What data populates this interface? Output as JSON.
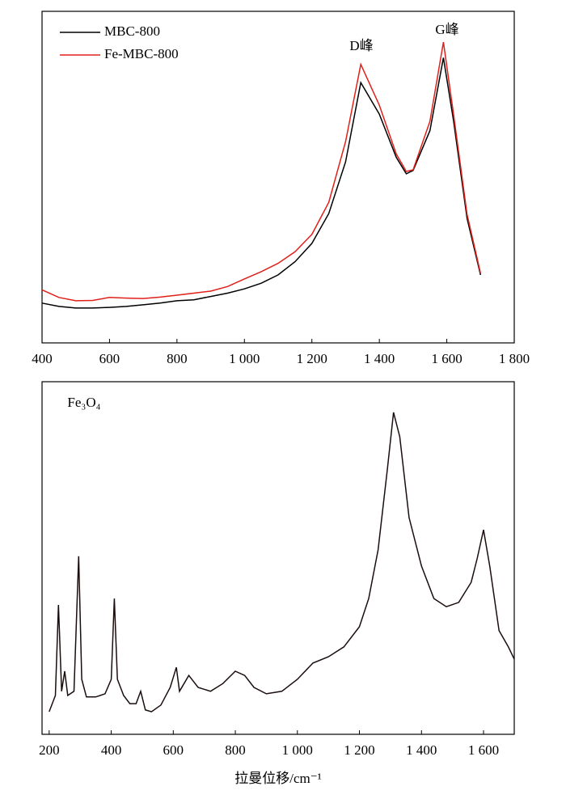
{
  "chart_data": [
    {
      "type": "line",
      "annotations": [
        "D峰",
        "G峰"
      ],
      "legend": "upper left",
      "x": [
        400,
        450,
        500,
        550,
        600,
        650,
        700,
        750,
        800,
        850,
        900,
        950,
        1000,
        1050,
        1100,
        1150,
        1200,
        1250,
        1300,
        1345,
        1400,
        1450,
        1480,
        1500,
        1550,
        1590,
        1620,
        1660,
        1700
      ],
      "series": [
        {
          "name": "MBC-800",
          "color": "#000000",
          "values": [
            12,
            11,
            10.5,
            10.5,
            10.7,
            11,
            11.5,
            12,
            12.7,
            13,
            14,
            15,
            16.3,
            18,
            20.5,
            24.5,
            30,
            39,
            54.6,
            78.5,
            69,
            56,
            51,
            52,
            64,
            86,
            67,
            37.6,
            20.5
          ]
        },
        {
          "name": "Fe-MBC-800",
          "color": "#e0201b",
          "values": [
            16,
            13.7,
            12.7,
            12.8,
            13.7,
            13.5,
            13.4,
            13.8,
            14.4,
            15,
            15.6,
            17,
            19.3,
            21.5,
            24,
            27.5,
            32.7,
            42.4,
            60.7,
            84,
            71.7,
            57,
            51.7,
            52.2,
            66.8,
            90.7,
            69,
            38.8,
            21
          ]
        }
      ],
      "xlim": [
        400,
        1800
      ],
      "xticks": [
        400,
        600,
        800,
        {
          "value": 1000,
          "label": "1 000"
        },
        {
          "value": 1200,
          "label": "1 200"
        },
        {
          "value": 1400,
          "label": "1 400"
        },
        {
          "value": 1600,
          "label": "1 600"
        },
        {
          "value": 1800,
          "label": "1 800"
        }
      ],
      "ylim": [
        0,
        100
      ]
    },
    {
      "type": "line",
      "annotations": [
        "Fe₃O₄"
      ],
      "x_label": "拉曼位移/cm⁻¹",
      "x": [
        200,
        220,
        230,
        240,
        250,
        260,
        280,
        295,
        305,
        320,
        350,
        380,
        400,
        410,
        420,
        440,
        460,
        480,
        495,
        510,
        530,
        560,
        590,
        610,
        620,
        650,
        680,
        720,
        760,
        800,
        830,
        860,
        900,
        950,
        1000,
        1050,
        1100,
        1150,
        1200,
        1230,
        1260,
        1290,
        1310,
        1330,
        1360,
        1400,
        1440,
        1480,
        1520,
        1560,
        1580,
        1600,
        1620,
        1650,
        1680,
        1699
      ],
      "series": [
        {
          "color": "#1a0d0d",
          "values": [
            6.4,
            11.0,
            36.7,
            12.2,
            17.9,
            11.0,
            12.2,
            50.5,
            15.6,
            10.6,
            10.6,
            11.5,
            15.6,
            38.5,
            15.6,
            11.0,
            8.7,
            8.7,
            12.2,
            6.9,
            6.4,
            8.3,
            13.3,
            19.0,
            12.2,
            16.7,
            13.3,
            12.2,
            14.4,
            17.9,
            16.7,
            13.3,
            11.5,
            12.2,
            15.6,
            20.2,
            22.0,
            24.8,
            30.5,
            38.5,
            52.3,
            75.2,
            91.3,
            84.4,
            61.5,
            47.7,
            38.5,
            36.2,
            37.4,
            43.1,
            50.0,
            58.0,
            47.7,
            29.4,
            24.8,
            21.3
          ]
        }
      ],
      "xlim": [
        177,
        1699
      ],
      "xticks": [
        200,
        400,
        600,
        800,
        {
          "value": 1000,
          "label": "1 000"
        },
        {
          "value": 1200,
          "label": "1 200"
        },
        {
          "value": 1400,
          "label": "1 400"
        },
        {
          "value": 1600,
          "label": "1 600"
        }
      ],
      "ylim": [
        0,
        100
      ]
    }
  ]
}
